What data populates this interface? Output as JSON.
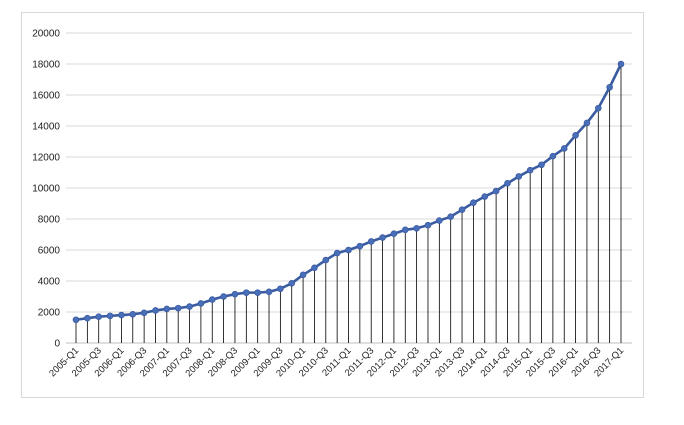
{
  "chart_data": {
    "type": "line",
    "title": "",
    "xlabel": "",
    "ylabel": "",
    "ylim": [
      0,
      20000
    ],
    "y_ticks": [
      0,
      2000,
      4000,
      6000,
      8000,
      10000,
      12000,
      14000,
      16000,
      18000,
      20000
    ],
    "grid": "horizontal",
    "drop_lines": true,
    "legend": "none",
    "colors": {
      "line": "#3a5ba0",
      "marker": "#4a6fba",
      "grid": "#d9d9d9",
      "drop_line": "#000000"
    },
    "categories": [
      "2005-Q1",
      "2005-Q2",
      "2005-Q3",
      "2005-Q4",
      "2006-Q1",
      "2006-Q2",
      "2006-Q3",
      "2006-Q4",
      "2007-Q1",
      "2007-Q2",
      "2007-Q3",
      "2007-Q4",
      "2008-Q1",
      "2008-Q2",
      "2008-Q3",
      "2008-Q4",
      "2009-Q1",
      "2009-Q2",
      "2009-Q3",
      "2009-Q4",
      "2010-Q1",
      "2010-Q2",
      "2010-Q3",
      "2010-Q4",
      "2011-Q1",
      "2011-Q2",
      "2011-Q3",
      "2011-Q4",
      "2012-Q1",
      "2012-Q2",
      "2012-Q3",
      "2012-Q4",
      "2013-Q1",
      "2013-Q2",
      "2013-Q3",
      "2013-Q4",
      "2014-Q1",
      "2014-Q2",
      "2014-Q3",
      "2014-Q4",
      "2015-Q1",
      "2015-Q2",
      "2015-Q3",
      "2015-Q4",
      "2016-Q1",
      "2016-Q2",
      "2016-Q3",
      "2016-Q4",
      "2017-Q1"
    ],
    "x_tick_labels": [
      "2005-Q1",
      "2005-Q3",
      "2006-Q1",
      "2006-Q3",
      "2007-Q1",
      "2007-Q3",
      "2008-Q1",
      "2008-Q3",
      "2009-Q1",
      "2009-Q3",
      "2010-Q1",
      "2010-Q3",
      "2011-Q1",
      "2011-Q3",
      "2012-Q1",
      "2012-Q3",
      "2013-Q1",
      "2013-Q3",
      "2014-Q1",
      "2014-Q3",
      "2015-Q1",
      "2015-Q3",
      "2016-Q1",
      "2016-Q3",
      "2017-Q1"
    ],
    "series": [
      {
        "values": [
          1500,
          1600,
          1700,
          1750,
          1800,
          1850,
          1950,
          2100,
          2200,
          2250,
          2350,
          2550,
          2800,
          3000,
          3150,
          3250,
          3250,
          3300,
          3500,
          3850,
          4400,
          4850,
          5350,
          5800,
          6000,
          6250,
          6550,
          6800,
          7050,
          7300,
          7400,
          7600,
          7900,
          8150,
          8600,
          9050,
          9450,
          9800,
          10300,
          10750,
          11150,
          11500,
          12050,
          12550,
          13400,
          14200,
          15150,
          16500,
          18000
        ]
      }
    ]
  }
}
